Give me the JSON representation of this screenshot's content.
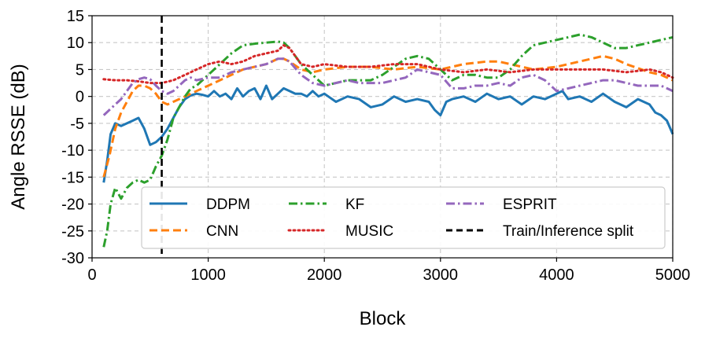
{
  "chart_data": {
    "type": "line",
    "title": "",
    "xlabel": "Block",
    "ylabel": "Angle RSSE (dB)",
    "xlim": [
      0,
      5000
    ],
    "ylim": [
      -30,
      15
    ],
    "xticks": [
      0,
      1000,
      2000,
      3000,
      4000,
      5000
    ],
    "yticks": [
      -30,
      -25,
      -20,
      -15,
      -10,
      -5,
      0,
      5,
      10,
      15
    ],
    "grid": true,
    "legend_position": "lower-right",
    "legend_columns": 3,
    "vline": {
      "x": 600,
      "label": "Train/Inference split",
      "color": "#000000",
      "style": "dashed"
    },
    "series": [
      {
        "name": "DDPM",
        "color": "#1f77b4",
        "style": "solid",
        "x": [
          100,
          130,
          160,
          200,
          250,
          300,
          350,
          400,
          450,
          500,
          550,
          600,
          650,
          700,
          750,
          800,
          850,
          900,
          950,
          1000,
          1050,
          1100,
          1150,
          1200,
          1250,
          1300,
          1350,
          1400,
          1450,
          1500,
          1550,
          1600,
          1650,
          1700,
          1750,
          1800,
          1850,
          1900,
          1950,
          2000,
          2100,
          2200,
          2300,
          2400,
          2500,
          2600,
          2700,
          2800,
          2900,
          2950,
          3000,
          3050,
          3100,
          3200,
          3300,
          3400,
          3500,
          3600,
          3700,
          3800,
          3900,
          4000,
          4050,
          4100,
          4200,
          4300,
          4400,
          4500,
          4600,
          4700,
          4800,
          4850,
          4900,
          4950,
          5000
        ],
        "y": [
          -16,
          -12,
          -7,
          -5,
          -5.5,
          -5,
          -4.5,
          -4,
          -6,
          -9,
          -8.5,
          -7.5,
          -6,
          -4,
          -2,
          -0.5,
          0.2,
          0.5,
          0.3,
          0,
          1,
          0,
          0.5,
          -0.5,
          1.5,
          0,
          1,
          1.5,
          -0.5,
          2,
          -0.5,
          0.5,
          1.5,
          1,
          0.5,
          0.5,
          0,
          1,
          0,
          0.5,
          -1,
          0,
          -0.5,
          -2,
          -1.5,
          0,
          -1,
          -0.5,
          -1,
          -2.5,
          -3.5,
          -1,
          -0.5,
          0,
          -1,
          0.5,
          -0.5,
          0,
          -1.5,
          0,
          -0.5,
          0.5,
          1,
          -0.5,
          0,
          -1,
          0.5,
          -1,
          -2,
          -0.5,
          -1.5,
          -3,
          -3.5,
          -4.5,
          -7
        ]
      },
      {
        "name": "CNN",
        "color": "#ff7f0e",
        "style": "dashed",
        "x": [
          100,
          150,
          200,
          250,
          300,
          350,
          400,
          450,
          500,
          550,
          600,
          650,
          700,
          750,
          800,
          850,
          900,
          1000,
          1100,
          1200,
          1300,
          1400,
          1500,
          1600,
          1650,
          1700,
          1800,
          1900,
          2000,
          2200,
          2400,
          2600,
          2800,
          3000,
          3200,
          3400,
          3500,
          3600,
          3800,
          4000,
          4200,
          4400,
          4500,
          4600,
          4800,
          4900,
          5000
        ],
        "y": [
          -15,
          -11,
          -6,
          -3,
          -1,
          1,
          2,
          2,
          1.5,
          0.5,
          -1,
          -1.5,
          -1,
          -0.5,
          0,
          0.5,
          1,
          2,
          3,
          4,
          5,
          5.5,
          6,
          7,
          7,
          6.5,
          5,
          4.5,
          5,
          5.5,
          5.5,
          5,
          5.5,
          5,
          6,
          6.5,
          6.5,
          6,
          5,
          5.5,
          6.5,
          7.5,
          7,
          6,
          4.5,
          4,
          3
        ]
      },
      {
        "name": "KF",
        "color": "#2ca02c",
        "style": "dashdot",
        "x": [
          100,
          130,
          160,
          200,
          250,
          300,
          350,
          400,
          450,
          500,
          550,
          600,
          650,
          700,
          750,
          800,
          850,
          900,
          950,
          1000,
          1100,
          1200,
          1300,
          1400,
          1500,
          1600,
          1650,
          1700,
          1800,
          1900,
          2000,
          2100,
          2200,
          2400,
          2500,
          2600,
          2700,
          2800,
          2900,
          3000,
          3100,
          3200,
          3300,
          3400,
          3500,
          3600,
          3700,
          3800,
          3900,
          4000,
          4100,
          4200,
          4300,
          4400,
          4500,
          4600,
          4700,
          4800,
          4900,
          5000
        ],
        "y": [
          -28,
          -25,
          -20,
          -17,
          -19,
          -17,
          -16,
          -15.5,
          -16,
          -15.5,
          -13,
          -11,
          -8,
          -4,
          -2,
          0,
          1.5,
          2,
          3,
          4,
          6,
          8,
          9.5,
          9.8,
          10,
          10.2,
          10,
          9,
          6,
          4,
          2,
          2.5,
          3,
          3,
          4,
          5.5,
          7,
          7.5,
          7,
          5,
          3,
          4,
          4,
          3.5,
          3.5,
          5,
          7.5,
          9.5,
          10,
          10.5,
          11,
          11.5,
          11,
          10,
          9,
          9,
          9.5,
          10,
          10.5,
          11
        ]
      },
      {
        "name": "MUSIC",
        "color": "#d62728",
        "style": "dotted",
        "x": [
          100,
          200,
          300,
          400,
          500,
          600,
          700,
          800,
          900,
          1000,
          1100,
          1200,
          1300,
          1400,
          1500,
          1600,
          1650,
          1700,
          1800,
          1900,
          2000,
          2200,
          2400,
          2600,
          2800,
          3000,
          3200,
          3400,
          3600,
          3800,
          4000,
          4200,
          4400,
          4600,
          4800,
          4900,
          5000
        ],
        "y": [
          3.2,
          3,
          3,
          2.8,
          2.5,
          2.5,
          3,
          4,
          5,
          6,
          6.5,
          6,
          6.5,
          7.5,
          8,
          8.5,
          9.5,
          9,
          6,
          5.5,
          6,
          5.5,
          5.5,
          6,
          6,
          5,
          4.5,
          5,
          4.5,
          5,
          5,
          5,
          5,
          4.5,
          5,
          4.5,
          3.5
        ]
      },
      {
        "name": "ESPRIT",
        "color": "#9467bd",
        "style": "dashdot",
        "x": [
          100,
          150,
          200,
          250,
          300,
          350,
          400,
          450,
          500,
          550,
          600,
          650,
          700,
          750,
          800,
          850,
          900,
          1000,
          1100,
          1200,
          1300,
          1400,
          1500,
          1600,
          1650,
          1700,
          1800,
          1900,
          2000,
          2100,
          2200,
          2300,
          2400,
          2500,
          2600,
          2700,
          2800,
          2900,
          3000,
          3100,
          3200,
          3300,
          3400,
          3500,
          3600,
          3700,
          3800,
          3900,
          4000,
          4100,
          4200,
          4300,
          4400,
          4500,
          4600,
          4700,
          4800,
          4900,
          5000
        ],
        "y": [
          -3.5,
          -2.5,
          -1.5,
          -0.5,
          1,
          2.5,
          3.2,
          3.5,
          3.2,
          2,
          1,
          0.5,
          1,
          2,
          3,
          3.5,
          3,
          3.5,
          3.5,
          4.5,
          5,
          5.5,
          6,
          7,
          7,
          6.5,
          4,
          2.5,
          2,
          2.5,
          3,
          2.5,
          2.5,
          2.5,
          3,
          3.5,
          5,
          4.5,
          4,
          1.5,
          1.5,
          2,
          2,
          2.5,
          2,
          3.5,
          4,
          3,
          1,
          1.5,
          2,
          2.5,
          3,
          3,
          2.5,
          2,
          2,
          2,
          1
        ]
      }
    ]
  }
}
